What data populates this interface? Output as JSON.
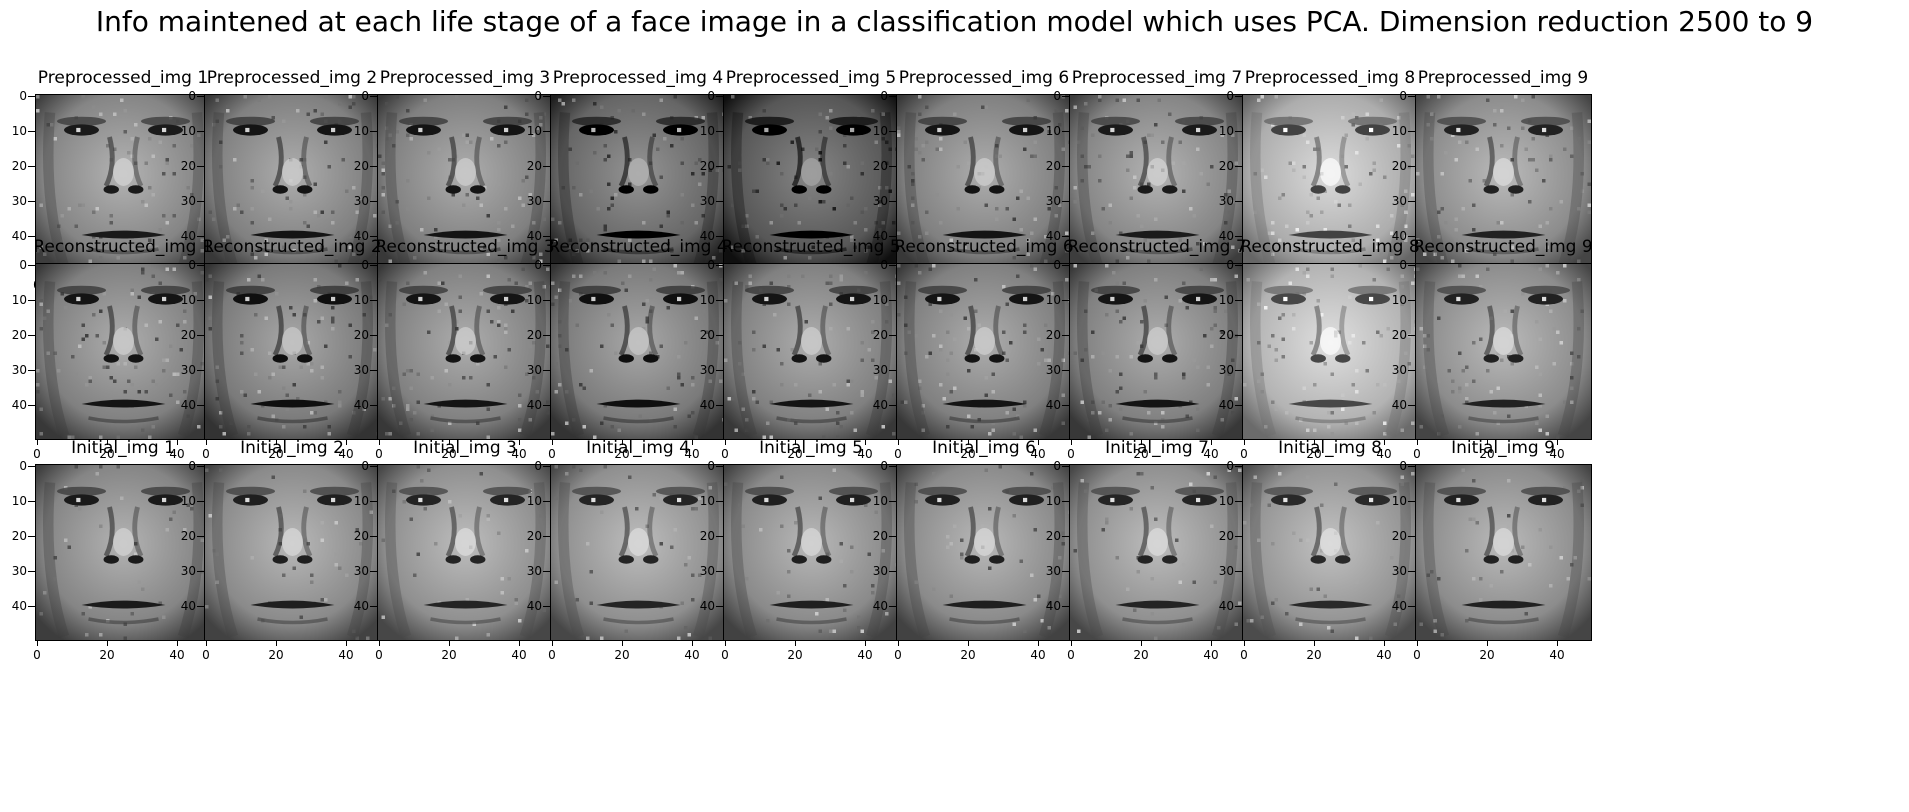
{
  "figure": {
    "title": "Info maintened at each life stage of a face image in a classification model which uses PCA. Dimension reduction 2500 to 9"
  },
  "axes": {
    "y_ticks": [
      "0",
      "10",
      "20",
      "30",
      "40"
    ],
    "x_ticks": [
      "0",
      "20",
      "40"
    ]
  },
  "rows": [
    {
      "stage": "preprocessed",
      "panels": [
        {
          "title": "Preprocessed_img 1",
          "tone": 0.52
        },
        {
          "title": "Preprocessed_img 2",
          "tone": 0.5
        },
        {
          "title": "Preprocessed_img 3",
          "tone": 0.5
        },
        {
          "title": "Preprocessed_img 4",
          "tone": 0.4
        },
        {
          "title": "Preprocessed_img 5",
          "tone": 0.34
        },
        {
          "title": "Preprocessed_img 6",
          "tone": 0.5
        },
        {
          "title": "Preprocessed_img 7",
          "tone": 0.52
        },
        {
          "title": "Preprocessed_img 8",
          "tone": 0.68
        },
        {
          "title": "Preprocessed_img 9",
          "tone": 0.55
        }
      ]
    },
    {
      "stage": "reconstructed",
      "panels": [
        {
          "title": "Reconstructed_img  1",
          "tone": 0.5
        },
        {
          "title": "Reconstructed_img  2",
          "tone": 0.48
        },
        {
          "title": "Reconstructed_img  3",
          "tone": 0.5
        },
        {
          "title": "Reconstructed_img  4",
          "tone": 0.48
        },
        {
          "title": "Reconstructed_img  5",
          "tone": 0.5
        },
        {
          "title": "Reconstructed_img  6",
          "tone": 0.5
        },
        {
          "title": "Reconstructed_img  7",
          "tone": 0.5
        },
        {
          "title": "Reconstructed_img  8",
          "tone": 0.7
        },
        {
          "title": "Reconstructed_img  9",
          "tone": 0.55
        }
      ]
    },
    {
      "stage": "initial",
      "panels": [
        {
          "title": "Initial_img 1",
          "tone": 0.52
        },
        {
          "title": "Initial_img 2",
          "tone": 0.54
        },
        {
          "title": "Initial_img 3",
          "tone": 0.56
        },
        {
          "title": "Initial_img 4",
          "tone": 0.56
        },
        {
          "title": "Initial_img 5",
          "tone": 0.54
        },
        {
          "title": "Initial_img 6",
          "tone": 0.54
        },
        {
          "title": "Initial_img 7",
          "tone": 0.56
        },
        {
          "title": "Initial_img 8",
          "tone": 0.58
        },
        {
          "title": "Initial_img 9",
          "tone": 0.55
        }
      ]
    }
  ]
}
